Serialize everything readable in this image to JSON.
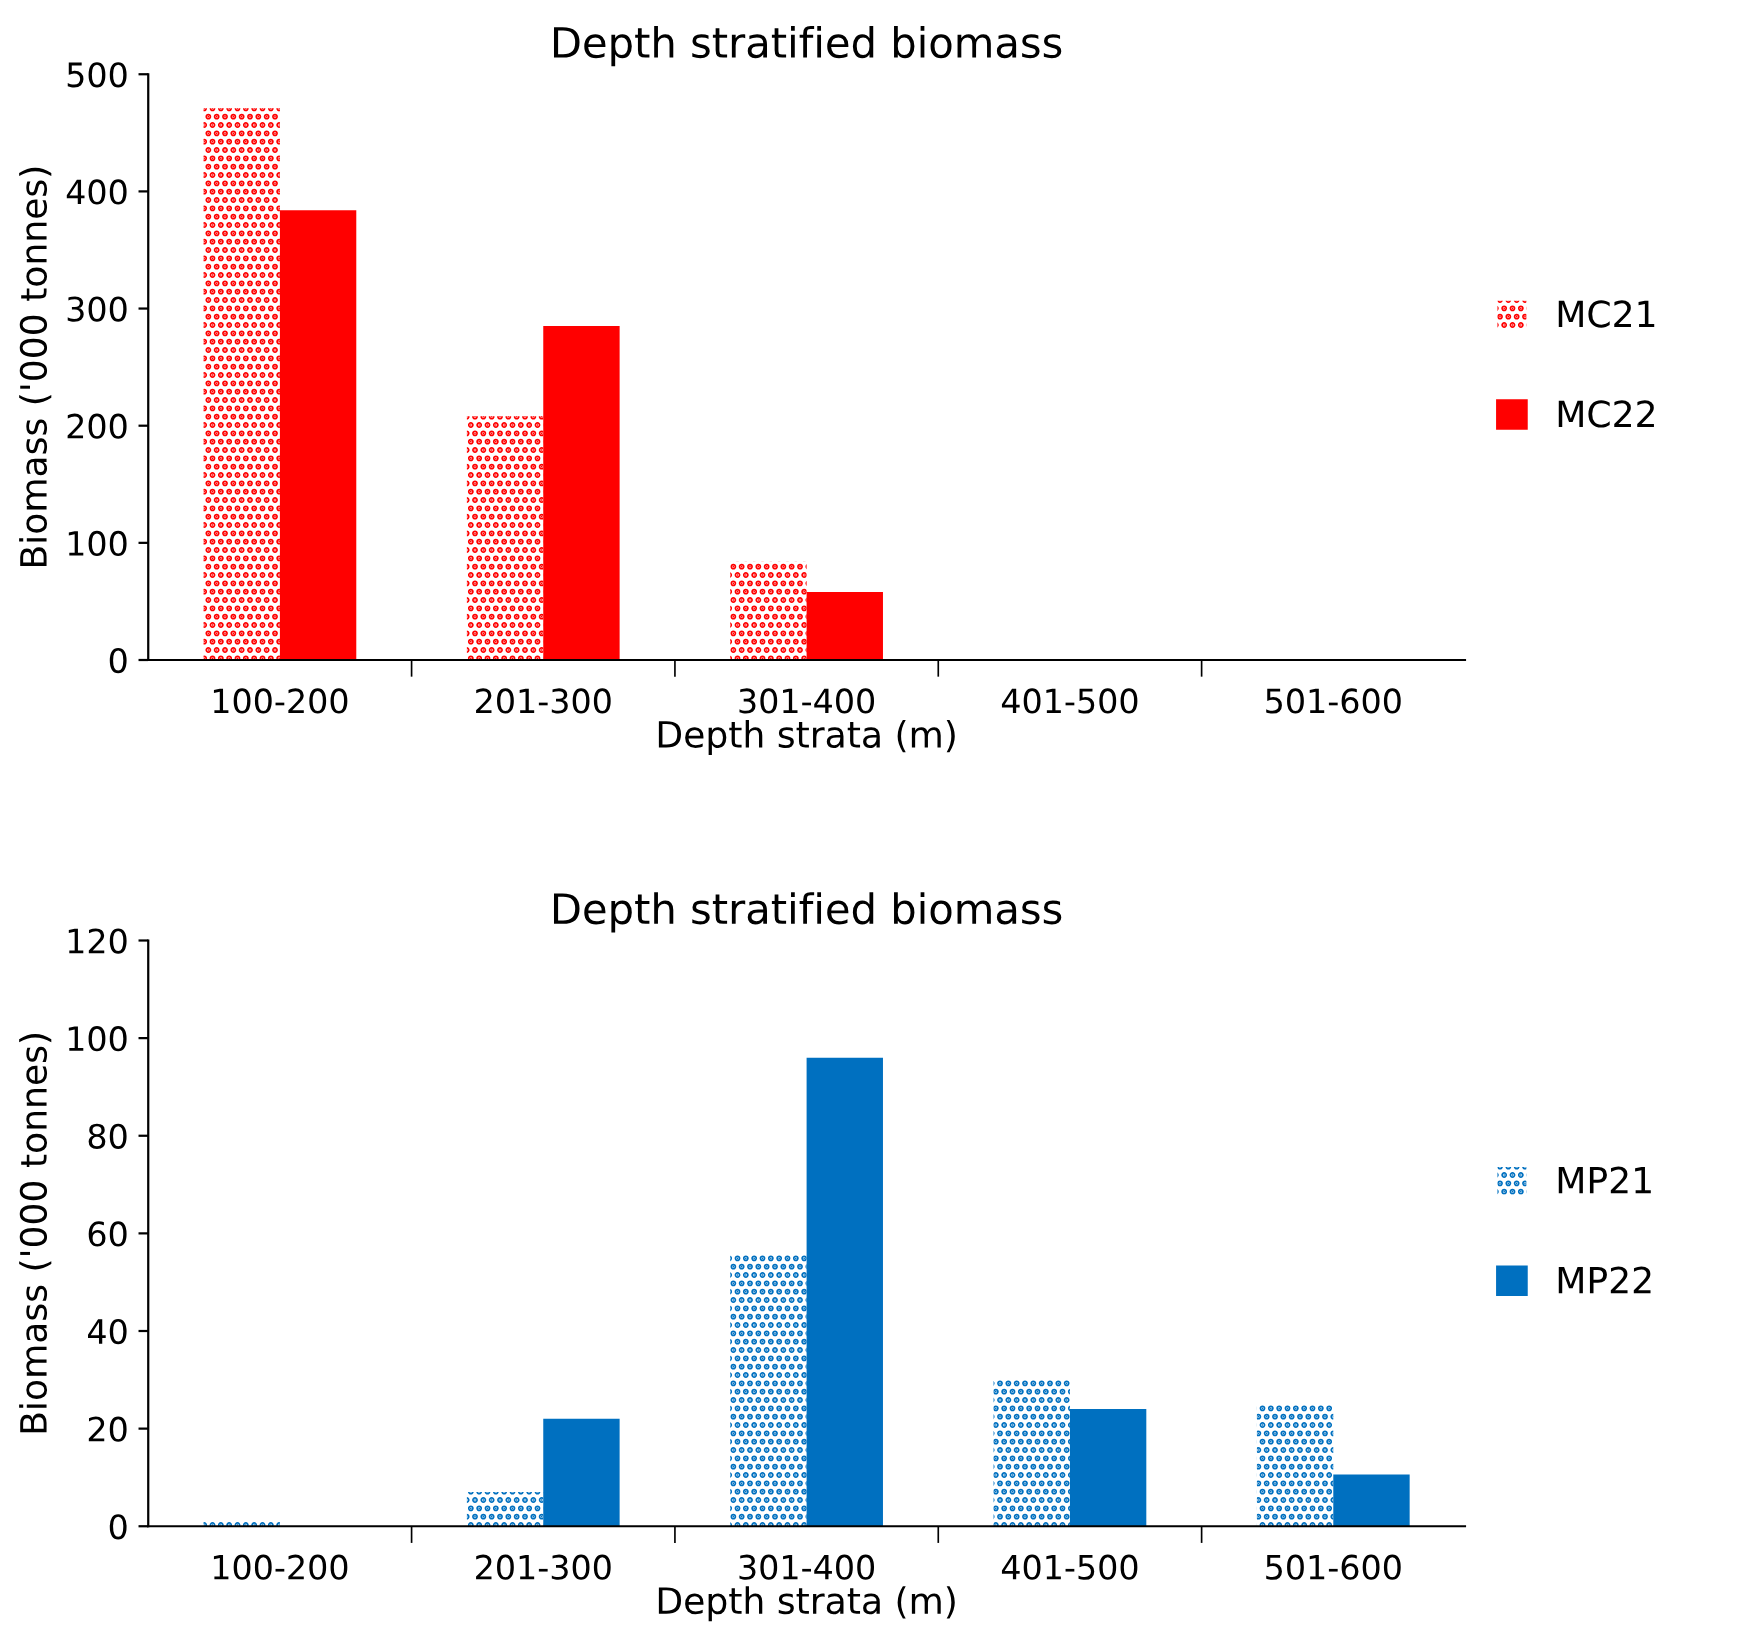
{
  "chart_data": [
    {
      "type": "bar",
      "title": "Depth stratified biomass",
      "xlabel": "Depth strata (m)",
      "ylabel": "Biomass ('000 tonnes)",
      "categories": [
        "100-200",
        "201-300",
        "301-400",
        "401-500",
        "501-600"
      ],
      "series": [
        {
          "name": "MC21",
          "color": "#ff0000",
          "values": [
            471,
            208,
            84,
            0,
            0
          ]
        },
        {
          "name": "MC22",
          "color": "#ff0000",
          "values": [
            384,
            285,
            58,
            0,
            0
          ]
        }
      ],
      "ylim": [
        0,
        500
      ],
      "yticks": [
        0,
        100,
        200,
        300,
        400,
        500
      ],
      "grid": false,
      "legend": "right"
    },
    {
      "type": "bar",
      "title": "Depth stratified biomass",
      "xlabel": "Depth strata (m)",
      "ylabel": "Biomass ('000 tonnes)",
      "categories": [
        "100-200",
        "201-300",
        "301-400",
        "401-500",
        "501-600"
      ],
      "series": [
        {
          "name": "MP21",
          "color": "#0070c0",
          "values": [
            1.2,
            7,
            56,
            30,
            25
          ]
        },
        {
          "name": "MP22",
          "color": "#0070c0",
          "values": [
            0,
            22,
            96,
            24,
            10.6
          ]
        }
      ],
      "ylim": [
        0,
        120
      ],
      "yticks": [
        0,
        20,
        40,
        60,
        80,
        100,
        120
      ],
      "grid": false,
      "legend": "right"
    }
  ]
}
